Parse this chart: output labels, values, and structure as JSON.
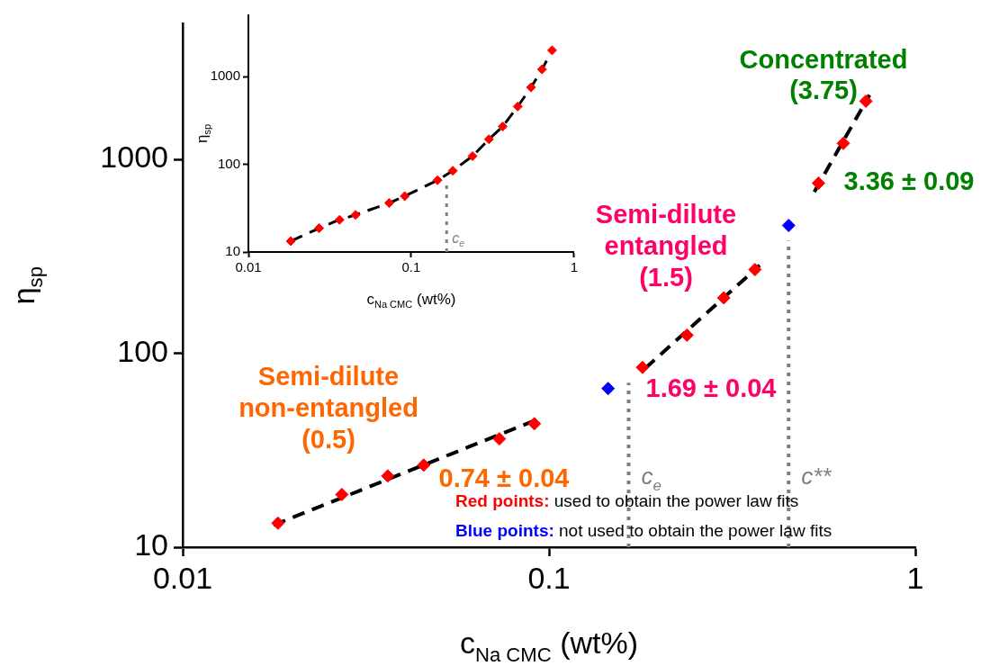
{
  "chart_data": [
    {
      "type": "scatter",
      "xlabel": "c$_{Na CMC}$ (wt%)",
      "ylabel": "η$_{sp}$",
      "log": "xy",
      "xlim": [
        0.01,
        1
      ],
      "ylim": [
        10,
        5000
      ],
      "xticks": [
        0.01,
        0.1,
        1
      ],
      "yticks": [
        10,
        100,
        1000
      ],
      "grid": false,
      "legend": false,
      "marker": "diamond",
      "series": [
        {
          "type": "scatter",
          "color": "#ff0000",
          "x": [
            0.0182,
            0.0272,
            0.0363,
            0.0455,
            0.0732,
            0.0912,
            0.18,
            0.238,
            0.3,
            0.365,
            0.544,
            0.636,
            0.733
          ],
          "values": [
            13.3,
            18.7,
            23.3,
            26.5,
            36.2,
            43.3,
            84.5,
            124,
            193,
            270,
            753,
            1208,
            1995
          ]
        },
        {
          "type": "scatter",
          "color": "#0000ff",
          "x": [
            0.145,
            0.451
          ],
          "values": [
            65.8,
            456
          ]
        },
        {
          "type": "line",
          "color": "#000000",
          "line_style": "dashed",
          "marker": "none",
          "x": [
            0.0177,
            0.093
          ],
          "values": [
            13.0,
            45.6
          ]
        },
        {
          "type": "line",
          "color": "#000000",
          "line_style": "dashed",
          "marker": "none",
          "x": [
            0.183,
            0.376
          ],
          "values": [
            83.6,
            284
          ]
        },
        {
          "type": "line",
          "color": "#000000",
          "line_style": "dashed",
          "marker": "none",
          "x": [
            0.53,
            0.75
          ],
          "values": [
            679,
            2148
          ]
        }
      ],
      "ref_lines": [
        {
          "axis": "x",
          "value": 0.165,
          "label": "c$_{e}$",
          "color": "#808080",
          "line_style": "dotted"
        },
        {
          "axis": "x",
          "value": 0.451,
          "label": "c**",
          "color": "#808080",
          "line_style": "dotted"
        }
      ],
      "annotations": [
        "Semi-dilute\nnon-entangled\n(0.5)",
        "0.74 ± 0.04",
        "Semi-dilute\nentangled\n(1.5)",
        "1.69 ± 0.04",
        "Concentrated\n(3.75)",
        "3.36 ± 0.09",
        "Red points: used to obtain the power law fits",
        "Blue points: not used to obtain the power law fits"
      ]
    },
    {
      "type": "scatter",
      "xlabel": "c$_{Na CMC}$ (wt%)",
      "ylabel": "η$_{sp}$",
      "log": "xy",
      "xlim": [
        0.01,
        1
      ],
      "ylim": [
        10,
        5000
      ],
      "xticks": [
        0.01,
        0.1,
        1
      ],
      "yticks": [
        10,
        100,
        1000
      ],
      "grid": false,
      "legend": false,
      "marker": "diamond",
      "series": [
        {
          "type": "line",
          "color": "#000000",
          "line_style": "dashed",
          "marker": "none",
          "x": [
            0.0182,
            0.0272,
            0.0363,
            0.0455,
            0.0732,
            0.0912,
            0.145,
            0.18,
            0.238,
            0.3,
            0.365,
            0.451,
            0.544,
            0.636,
            0.7
          ],
          "values": [
            13.3,
            18.7,
            23.3,
            26.5,
            36.2,
            43.3,
            65.8,
            84.5,
            124,
            193,
            270,
            456,
            753,
            1208,
            1700
          ]
        },
        {
          "type": "scatter",
          "color": "#ff0000",
          "x": [
            0.0182,
            0.0272,
            0.0363,
            0.0455,
            0.0732,
            0.0912,
            0.145,
            0.18,
            0.238,
            0.3,
            0.365,
            0.451,
            0.544,
            0.636,
            0.733
          ],
          "values": [
            13.3,
            18.7,
            23.3,
            26.5,
            36.2,
            43.3,
            65.8,
            84.5,
            124,
            193,
            270,
            456,
            753,
            1208,
            1995
          ]
        }
      ],
      "ref_lines": [
        {
          "axis": "x",
          "value": 0.165,
          "label": "c$_{e}$",
          "color": "#808080",
          "line_style": "dotted"
        }
      ]
    }
  ]
}
